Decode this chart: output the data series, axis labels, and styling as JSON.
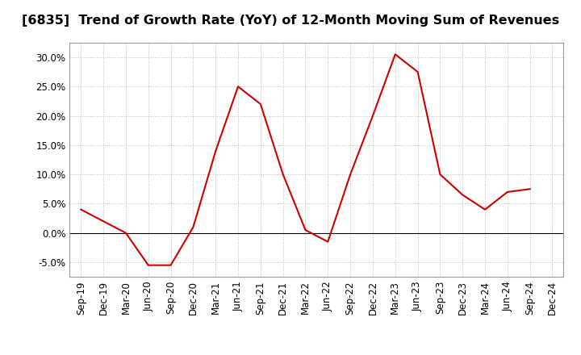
{
  "title": "[6835]  Trend of Growth Rate (YoY) of 12-Month Moving Sum of Revenues",
  "x_labels": [
    "Sep-19",
    "Dec-19",
    "Mar-20",
    "Jun-20",
    "Sep-20",
    "Dec-20",
    "Mar-21",
    "Jun-21",
    "Sep-21",
    "Dec-21",
    "Mar-22",
    "Jun-22",
    "Sep-22",
    "Dec-22",
    "Mar-23",
    "Jun-23",
    "Sep-23",
    "Dec-23",
    "Mar-24",
    "Jun-24",
    "Sep-24",
    "Dec-24"
  ],
  "y_values": [
    4.0,
    2.0,
    0.0,
    -5.5,
    -5.5,
    1.0,
    14.0,
    25.0,
    22.0,
    10.0,
    0.5,
    -1.5,
    10.0,
    20.0,
    30.5,
    27.5,
    10.0,
    6.5,
    4.0,
    7.0,
    7.5,
    null
  ],
  "line_color": "#CC0000",
  "background_color": "#ffffff",
  "plot_bg_color": "#ffffff",
  "ylim": [
    -7.5,
    32.5
  ],
  "yticks": [
    -5.0,
    0.0,
    5.0,
    10.0,
    15.0,
    20.0,
    25.0,
    30.0
  ],
  "grid_color": "#bbbbbb",
  "title_fontsize": 11.5,
  "tick_fontsize": 8.5
}
